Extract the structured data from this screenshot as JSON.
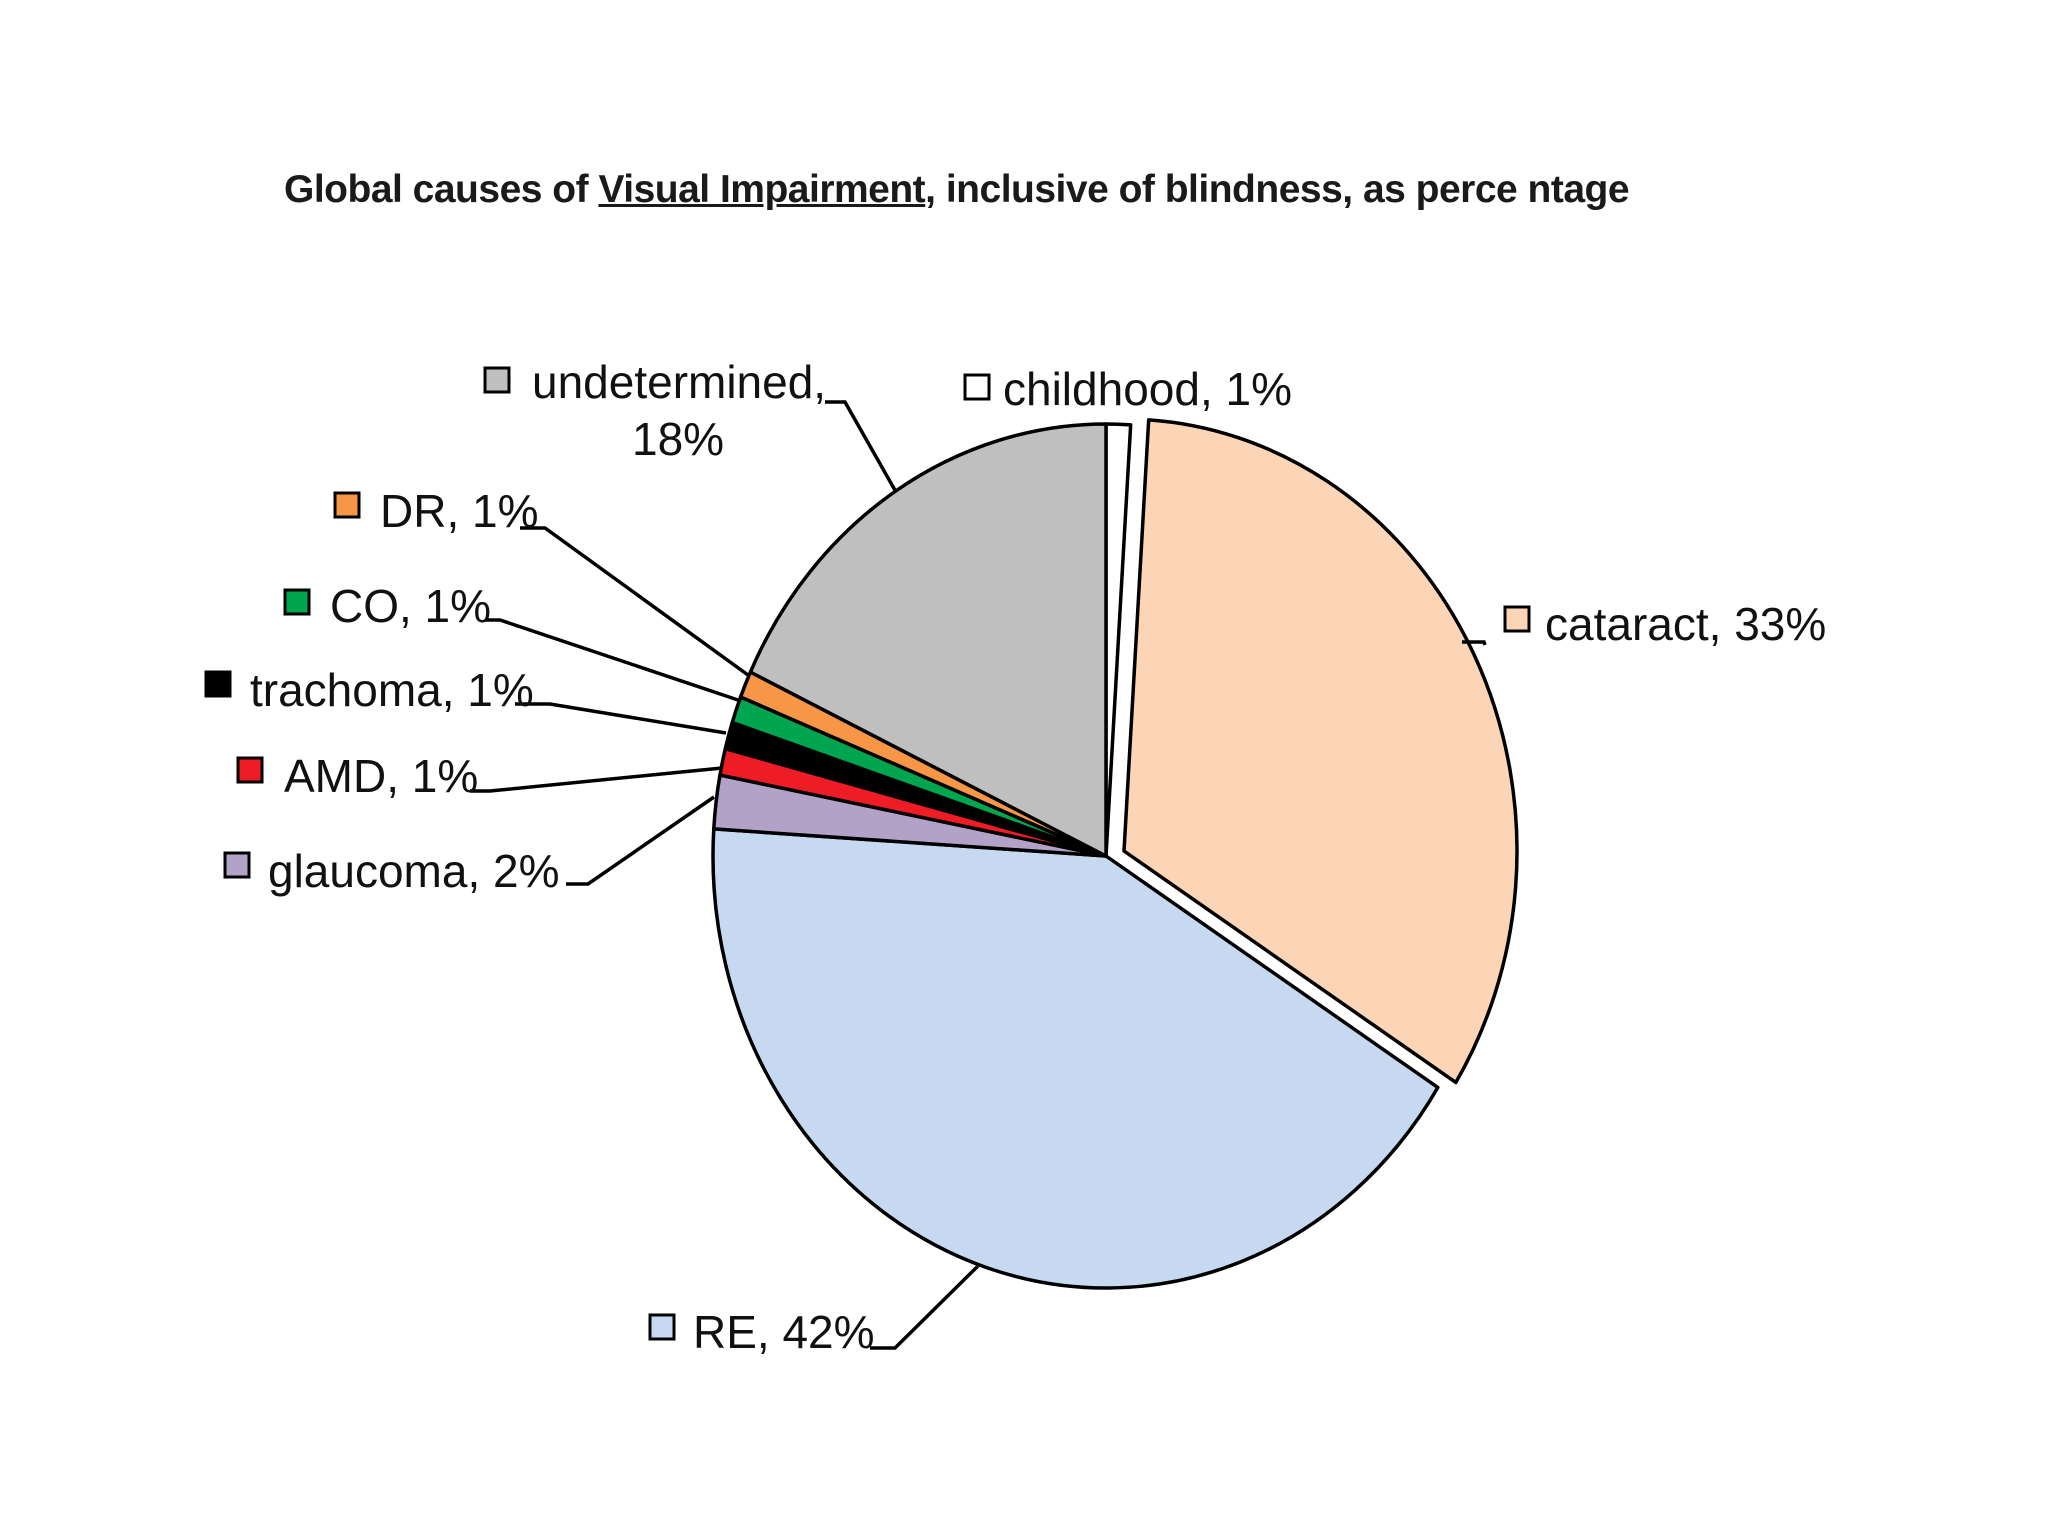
{
  "title": {
    "prefix": "Global causes of ",
    "underlined": "Visual Impairment",
    "suffix": ", inclusive of blindness, as perce ntage"
  },
  "chart_data": {
    "type": "pie",
    "title": "Global causes of Visual Impairment, inclusive of blindness, as perce ntage",
    "start": "12 o'clock",
    "direction": "clockwise",
    "slices": [
      {
        "label": "childhood",
        "value": 1,
        "text": "childhood, 1%",
        "color": "#ffffff"
      },
      {
        "label": "cataract",
        "value": 33,
        "text": "cataract, 33%",
        "color": "#fbd5b5"
      },
      {
        "label": "RE",
        "value": 42,
        "text": "RE, 42%",
        "color": "#c6d9f0"
      },
      {
        "label": "glaucoma",
        "value": 2,
        "text": "glaucoma, 2%",
        "color": "#b3a2c7"
      },
      {
        "label": "AMD",
        "value": 1,
        "text": "AMD, 1%",
        "color": "#ee1c24"
      },
      {
        "label": "trachoma",
        "value": 1,
        "text": "trachoma, 1%",
        "color": "#000000"
      },
      {
        "label": "CO",
        "value": 1,
        "text": "CO, 1%",
        "color": "#00a550"
      },
      {
        "label": "DR",
        "value": 1,
        "text": "DR, 1%",
        "color": "#f79646"
      },
      {
        "label": "undetermined",
        "value": 18,
        "text": [
          "undetermined,",
          "18%"
        ],
        "color": "#bfbfbf"
      }
    ],
    "legend": "labels beside slices with leader lines"
  }
}
